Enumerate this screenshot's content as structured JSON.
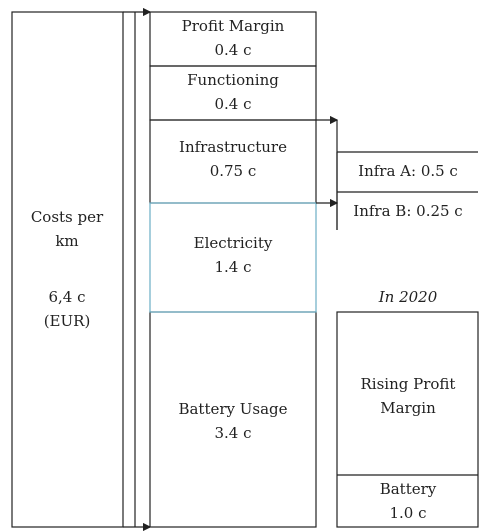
{
  "total": {
    "label": [
      "Costs per",
      "km"
    ],
    "value": "6,4 c",
    "unit": "(EUR)"
  },
  "segments": [
    {
      "name": "Profit Margin",
      "value": "0.4 c"
    },
    {
      "name": "Functioning",
      "value": "0.4 c"
    },
    {
      "name": "Infrastructure",
      "value": "0.75 c"
    },
    {
      "name": "Electricity",
      "value": "1.4 c"
    },
    {
      "name": "Battery Usage",
      "value": "3.4 c"
    }
  ],
  "infra_parts": [
    "Infra A: 0.5 c",
    "Infra B: 0.25 c"
  ],
  "future": {
    "title": "In 2020",
    "top": [
      "Rising Profit",
      "Margin"
    ],
    "bottom": {
      "name": "Battery",
      "value": "1.0 c"
    }
  }
}
